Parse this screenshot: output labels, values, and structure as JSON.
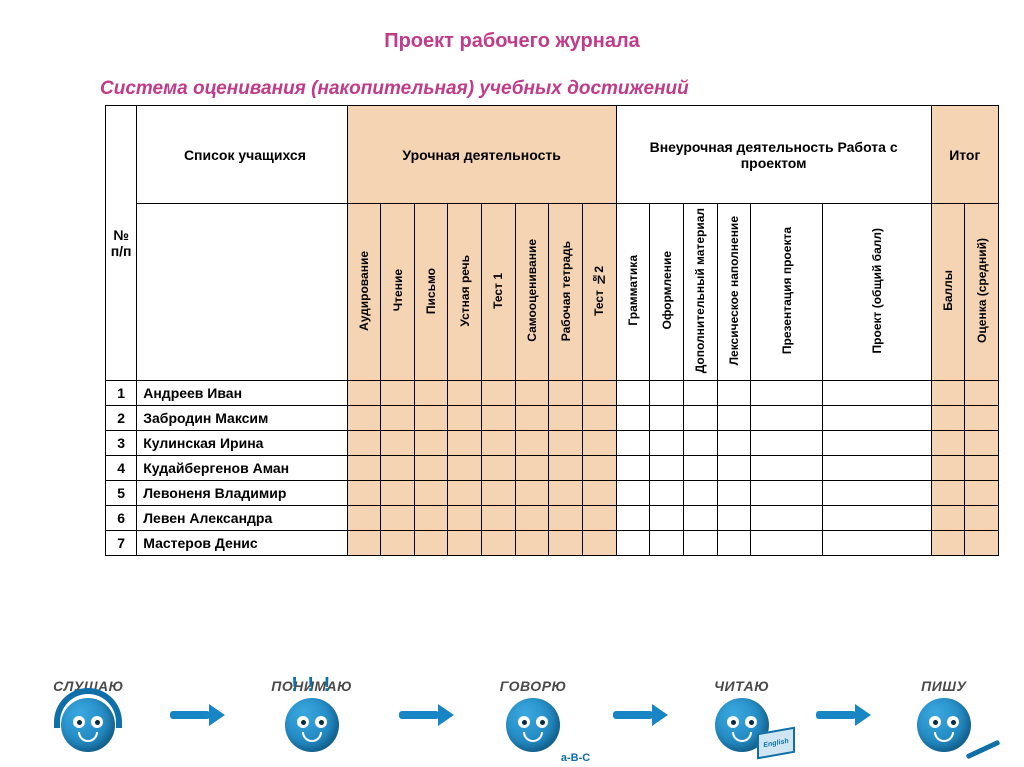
{
  "colors": {
    "title": "#c03b8a",
    "subtitle": "#c03b8a",
    "shade_bg": "#f5d4b3",
    "border": "#000000",
    "icon_primary": "#1886c4",
    "icon_gradient_light": "#3aa8e0",
    "icon_gradient_dark": "#0f6fa8",
    "step_text": "#4a4a4a"
  },
  "title": "Проект рабочего журнала",
  "subtitle": "Система оценивания (накопительная) учебных достижений",
  "header_row1": {
    "num": "№ п/п",
    "name": "Список учащихся",
    "group1": "Урочная деятельность",
    "group2": "Внеурочная деятельность Работа с проектом",
    "group3": "Итог"
  },
  "sub_cols": {
    "c0": "Аудирование",
    "c1": "Чтение",
    "c2": "Письмо",
    "c3": "Устная речь",
    "c4": "Тест 1",
    "c5": "Самооценивание",
    "c6": "Рабочая тетрадь",
    "c7": "Тест №2",
    "c8": "Грамматика",
    "c9": "Оформление",
    "c10": "Дополнительный материал",
    "c11": "Лексическое наполнение",
    "c12": "Презентация проекта",
    "c13": "Проект (общий балл)",
    "c14": "Баллы",
    "c15": "Оценка (средний)"
  },
  "students": [
    {
      "n": "1",
      "name": "Андреев Иван"
    },
    {
      "n": "2",
      "name": "Забродин Максим"
    },
    {
      "n": "3",
      "name": "Кулинская Ирина"
    },
    {
      "n": "4",
      "name": "Кудайбергенов Аман"
    },
    {
      "n": "5",
      "name": "Левоненя Владимир"
    },
    {
      "n": "6",
      "name": "Левен Александра"
    },
    {
      "n": "7",
      "name": "Мастеров Денис"
    }
  ],
  "steps": {
    "s0": "СЛУШАЮ",
    "s1": "ПОНИМАЮ",
    "s2": "ГОВОРЮ",
    "s3": "ЧИТАЮ",
    "s4": "ПИШУ"
  }
}
